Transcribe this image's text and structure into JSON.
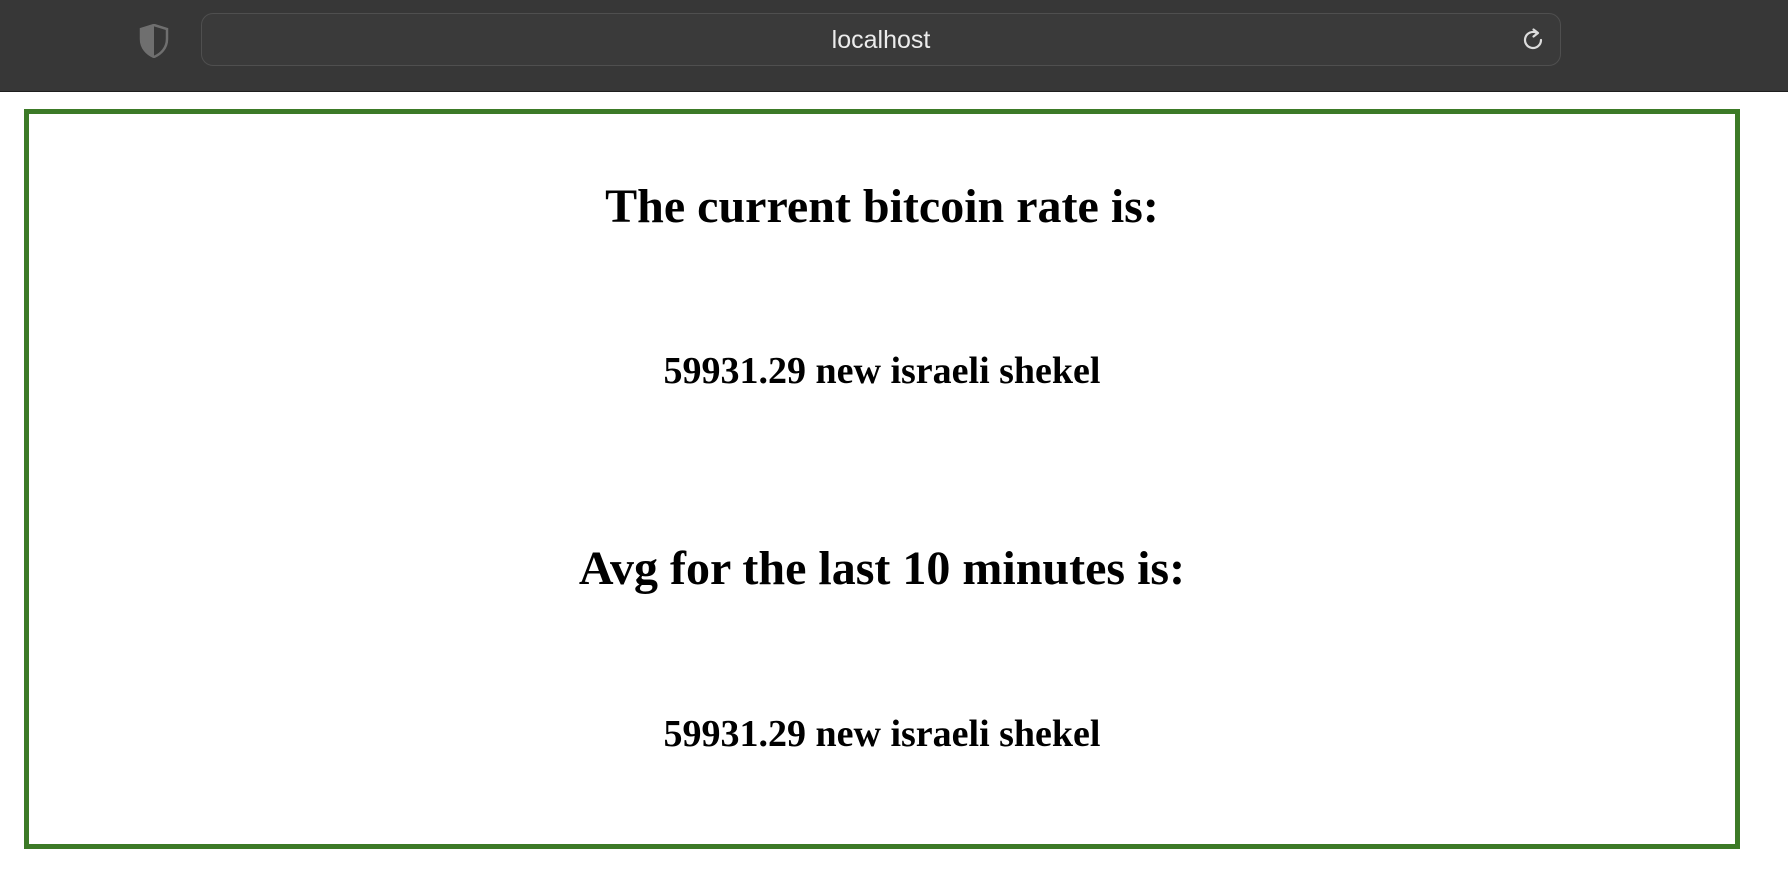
{
  "browser": {
    "address": "localhost",
    "shield_icon": "shield-icon",
    "reload_icon": "reload-icon"
  },
  "main": {
    "current_heading": "The current bitcoin rate is:",
    "current_value": "59931.29 new israeli shekel",
    "avg_heading": "Avg for the last 10 minutes is:",
    "avg_value": "59931.29 new israeli shekel"
  },
  "colors": {
    "toolbar": "#373737",
    "frame_border": "#3c7a27"
  }
}
